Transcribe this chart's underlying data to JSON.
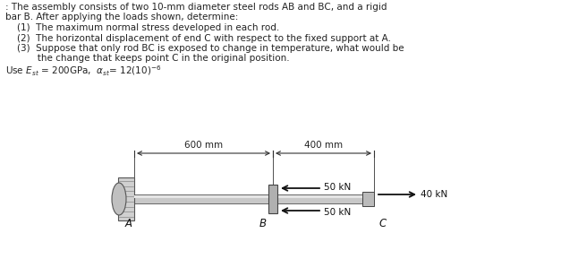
{
  "bg_color": "#ffffff",
  "text_color": "#222222",
  "title_lines": [
    ": The assembly consists of two 10-mm diameter steel rods AB and BC, and a rigid",
    "bar B. After applying the loads shown, determine:"
  ],
  "items": [
    "    (1)  The maximum normal stress developed in each rod.",
    "    (2)  The horizontal displacement of end C with respect to the fixed support at A.",
    "    (3)  Suppose that only rod BC is exposed to change in temperature, what would be",
    "           the change that keeps point C in the original position."
  ],
  "formula_line": "Use $E_{st}$ = 200GPa,  $\\alpha_{st}$= 12(10)$^{-6}$",
  "dim_600": "600 mm",
  "dim_400": "400 mm",
  "label_A": "A",
  "label_B": "B",
  "label_C": "C",
  "force_50kN_top": "50 kN",
  "force_50kN_bot": "50 kN",
  "force_40kN": "40 kN",
  "rod_color_light": "#c8c8c8",
  "rod_color_edge": "#666666",
  "wall_color": "#d0d0d0",
  "wall_edge": "#555555",
  "bar_color": "#b0b0b0",
  "bar_edge": "#444444"
}
